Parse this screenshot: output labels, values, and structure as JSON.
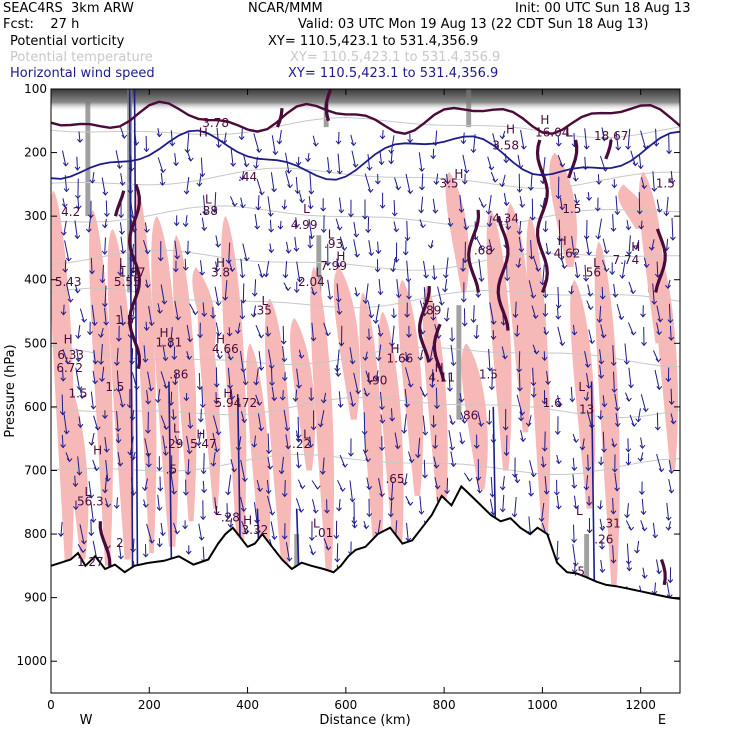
{
  "header": {
    "model": "SEAC4RS  3km ARW",
    "center": "NCAR/MMM",
    "init": "Init: 00 UTC Sun 18 Aug 13",
    "fcst": "Fcst:    27 h",
    "valid": "Valid: 03 UTC Mon 19 Aug 13 (22 CDT Sun 18 Aug 13)"
  },
  "fields": [
    {
      "name": "Potential vorticity",
      "xy": "XY= 110.5,423.1 to 531.4,356.9",
      "color": "#000000"
    },
    {
      "name": "Potential temperature",
      "xy": "XY= 110.5,423.1 to 531.4,356.9",
      "color": "#c8c8c8"
    },
    {
      "name": "Horizontal wind speed",
      "xy": "XY= 110.5,423.1 to 531.4,356.9",
      "color": "#1c1c8c"
    }
  ],
  "chart_data": {
    "type": "cross-section",
    "xlabel": "Distance (km)",
    "ylabel": "Pressure (hPa)",
    "xlim": [
      0,
      1280
    ],
    "ylim": [
      1050,
      100
    ],
    "x_ticks": [
      0,
      200,
      400,
      600,
      800,
      1000,
      1200
    ],
    "y_ticks": [
      100,
      200,
      300,
      400,
      500,
      600,
      700,
      800,
      900,
      1000
    ],
    "x_end_labels": {
      "left": "W",
      "right": "E"
    },
    "colors": {
      "pink": "#f7b8b8",
      "navy": "#1c1c8c",
      "purple": "#4a0a3a",
      "terrain": "#000000",
      "theta": "#c8c8c8"
    },
    "terrain": [
      [
        0,
        850
      ],
      [
        20,
        845
      ],
      [
        40,
        840
      ],
      [
        55,
        830
      ],
      [
        70,
        850
      ],
      [
        90,
        835
      ],
      [
        110,
        855
      ],
      [
        130,
        848
      ],
      [
        150,
        860
      ],
      [
        170,
        850
      ],
      [
        200,
        845
      ],
      [
        230,
        842
      ],
      [
        260,
        835
      ],
      [
        290,
        848
      ],
      [
        320,
        840
      ],
      [
        340,
        815
      ],
      [
        355,
        800
      ],
      [
        370,
        790
      ],
      [
        385,
        805
      ],
      [
        400,
        820
      ],
      [
        415,
        815
      ],
      [
        430,
        800
      ],
      [
        450,
        820
      ],
      [
        470,
        840
      ],
      [
        490,
        855
      ],
      [
        510,
        845
      ],
      [
        530,
        850
      ],
      [
        555,
        855
      ],
      [
        575,
        860
      ],
      [
        590,
        850
      ],
      [
        605,
        835
      ],
      [
        620,
        825
      ],
      [
        640,
        820
      ],
      [
        665,
        800
      ],
      [
        690,
        790
      ],
      [
        715,
        815
      ],
      [
        735,
        810
      ],
      [
        755,
        790
      ],
      [
        775,
        770
      ],
      [
        795,
        740
      ],
      [
        815,
        755
      ],
      [
        835,
        725
      ],
      [
        855,
        740
      ],
      [
        875,
        755
      ],
      [
        895,
        770
      ],
      [
        915,
        780
      ],
      [
        935,
        775
      ],
      [
        955,
        790
      ],
      [
        975,
        800
      ],
      [
        990,
        790
      ],
      [
        1010,
        800
      ],
      [
        1030,
        845
      ],
      [
        1050,
        860
      ],
      [
        1070,
        862
      ],
      [
        1090,
        868
      ],
      [
        1110,
        875
      ],
      [
        1130,
        880
      ],
      [
        1150,
        882
      ],
      [
        1175,
        886
      ],
      [
        1200,
        890
      ],
      [
        1230,
        895
      ],
      [
        1260,
        900
      ],
      [
        1280,
        902
      ]
    ],
    "labels": [
      {
        "t": "H",
        "x": 35,
        "y": 500
      },
      {
        "t": "6.33",
        "x": 40,
        "y": 525
      },
      {
        "t": "6.72",
        "x": 38,
        "y": 545
      },
      {
        "t": "5.43",
        "x": 35,
        "y": 410
      },
      {
        "t": "4.2",
        "x": 40,
        "y": 300
      },
      {
        "t": "1.5",
        "x": 55,
        "y": 585
      },
      {
        "t": "L",
        "x": 145,
        "y": 380
      },
      {
        "t": "1.87",
        "x": 165,
        "y": 395
      },
      {
        "t": "5.55",
        "x": 155,
        "y": 410
      },
      {
        "t": "1.5",
        "x": 150,
        "y": 470
      },
      {
        "t": "1.5",
        "x": 130,
        "y": 575
      },
      {
        "t": "H",
        "x": 345,
        "y": 380
      },
      {
        "t": "3.8",
        "x": 345,
        "y": 395
      },
      {
        "t": "H",
        "x": 310,
        "y": 175
      },
      {
        "t": "3.78",
        "x": 335,
        "y": 160
      },
      {
        "t": "L",
        "x": 320,
        "y": 280
      },
      {
        "t": ".88",
        "x": 320,
        "y": 298
      },
      {
        "t": ".44",
        "x": 400,
        "y": 245
      },
      {
        "t": "L",
        "x": 520,
        "y": 295
      },
      {
        "t": "4.99",
        "x": 515,
        "y": 320
      },
      {
        "t": "L",
        "x": 570,
        "y": 335
      },
      {
        "t": ".93",
        "x": 575,
        "y": 350
      },
      {
        "t": "H",
        "x": 590,
        "y": 370
      },
      {
        "t": "7.99",
        "x": 575,
        "y": 385
      },
      {
        "t": "L",
        "x": 545,
        "y": 395
      },
      {
        "t": "2.04",
        "x": 530,
        "y": 410
      },
      {
        "t": "L",
        "x": 435,
        "y": 440
      },
      {
        "t": ".35",
        "x": 430,
        "y": 455
      },
      {
        "t": "H",
        "x": 230,
        "y": 490
      },
      {
        "t": "1.81",
        "x": 240,
        "y": 505
      },
      {
        "t": "H",
        "x": 345,
        "y": 500
      },
      {
        "t": "4.66",
        "x": 355,
        "y": 515
      },
      {
        "t": ".86",
        "x": 260,
        "y": 555
      },
      {
        "t": "H",
        "x": 360,
        "y": 585
      },
      {
        "t": "5.94",
        "x": 360,
        "y": 600
      },
      {
        "t": ".72",
        "x": 400,
        "y": 600
      },
      {
        "t": "H",
        "x": 700,
        "y": 515
      },
      {
        "t": "1.66",
        "x": 710,
        "y": 530
      },
      {
        "t": "L",
        "x": 650,
        "y": 560
      },
      {
        "t": ".90",
        "x": 665,
        "y": 565
      },
      {
        "t": "L",
        "x": 770,
        "y": 435
      },
      {
        "t": ".89",
        "x": 775,
        "y": 455
      },
      {
        "t": "H",
        "x": 790,
        "y": 545
      },
      {
        "t": "4.11",
        "x": 795,
        "y": 560
      },
      {
        "t": "1.5",
        "x": 890,
        "y": 555
      },
      {
        "t": ".86",
        "x": 850,
        "y": 620
      },
      {
        "t": "H",
        "x": 935,
        "y": 170
      },
      {
        "t": "3.58",
        "x": 925,
        "y": 195
      },
      {
        "t": "H",
        "x": 1005,
        "y": 155
      },
      {
        "t": "16.04",
        "x": 1020,
        "y": 175
      },
      {
        "t": "L",
        "x": 1055,
        "y": 175
      },
      {
        "t": "18.67",
        "x": 1140,
        "y": 180
      },
      {
        "t": "H",
        "x": 830,
        "y": 240
      },
      {
        "t": "3.5",
        "x": 810,
        "y": 255
      },
      {
        "t": "4.34",
        "x": 925,
        "y": 310
      },
      {
        "t": ".68",
        "x": 880,
        "y": 360
      },
      {
        "t": "H",
        "x": 1040,
        "y": 345
      },
      {
        "t": "4.62",
        "x": 1050,
        "y": 365
      },
      {
        "t": "1.5",
        "x": 1060,
        "y": 295
      },
      {
        "t": "L",
        "x": 1110,
        "y": 380
      },
      {
        "t": ".56",
        "x": 1100,
        "y": 395
      },
      {
        "t": "H",
        "x": 1190,
        "y": 355
      },
      {
        "t": "7.74",
        "x": 1170,
        "y": 375
      },
      {
        "t": "1.5",
        "x": 1250,
        "y": 255
      },
      {
        "t": "13",
        "x": 1090,
        "y": 610
      },
      {
        "t": "L",
        "x": 1080,
        "y": 575
      },
      {
        "t": "1.6",
        "x": 1020,
        "y": 600
      },
      {
        "t": "H",
        "x": 95,
        "y": 675
      },
      {
        "t": "L",
        "x": 255,
        "y": 640
      },
      {
        "t": ".29",
        "x": 250,
        "y": 665
      },
      {
        "t": "H",
        "x": 305,
        "y": 650
      },
      {
        "t": "5.47",
        "x": 310,
        "y": 665
      },
      {
        "t": ".22",
        "x": 510,
        "y": 665
      },
      {
        "t": "L",
        "x": 520,
        "y": 650
      },
      {
        "t": ".65",
        "x": 700,
        "y": 720
      },
      {
        "t": "L",
        "x": 75,
        "y": 740
      },
      {
        "t": "56.3",
        "x": 80,
        "y": 755
      },
      {
        "t": "L",
        "x": 340,
        "y": 770
      },
      {
        "t": ".28",
        "x": 365,
        "y": 780
      },
      {
        "t": "H",
        "x": 400,
        "y": 785
      },
      {
        "t": "3.32",
        "x": 415,
        "y": 800
      },
      {
        "t": "L",
        "x": 540,
        "y": 790
      },
      {
        "t": ".01",
        "x": 555,
        "y": 805
      },
      {
        "t": "1.27",
        "x": 80,
        "y": 850
      },
      {
        "t": "2",
        "x": 140,
        "y": 820
      },
      {
        "t": "L",
        "x": 1075,
        "y": 770
      },
      {
        "t": ".26",
        "x": 1125,
        "y": 815
      },
      {
        "t": ".31",
        "x": 1140,
        "y": 790
      },
      {
        "t": ".5",
        "x": 1075,
        "y": 865
      },
      {
        "t": ".5",
        "x": 245,
        "y": 705
      }
    ]
  }
}
